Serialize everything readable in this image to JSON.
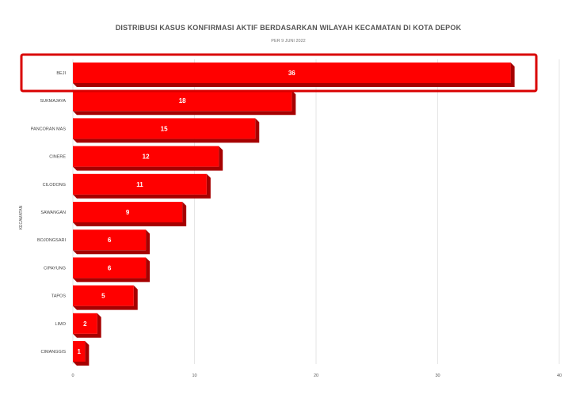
{
  "chart_data": {
    "type": "bar",
    "orientation": "horizontal",
    "title": "DISTRIBUSI KASUS KONFIRMASI AKTIF BERDASARKAN WILAYAH KECAMATAN DI KOTA DEPOK",
    "subtitle": "PER 9 JUNI 2022",
    "ylabel": "KECAMATAN",
    "xlabel": "",
    "categories": [
      "BEJI",
      "SUKMAJAYA",
      "PANCORAN MAS",
      "CINERE",
      "CILODONG",
      "SAWANGAN",
      "BOJONGSARI",
      "CIPAYUNG",
      "TAPOS",
      "LIMO",
      "CIMANGGIS"
    ],
    "values": [
      36,
      18,
      15,
      12,
      11,
      9,
      6,
      6,
      5,
      2,
      1
    ],
    "xlim": [
      0,
      40
    ],
    "xticks": [
      "0",
      "10",
      "20",
      "30",
      "40"
    ],
    "grid": true,
    "highlighted_category": "BEJI",
    "colors": {
      "bar": "#ff0000",
      "bar_shade": "#a60000",
      "highlight_border": "#d90000"
    }
  }
}
